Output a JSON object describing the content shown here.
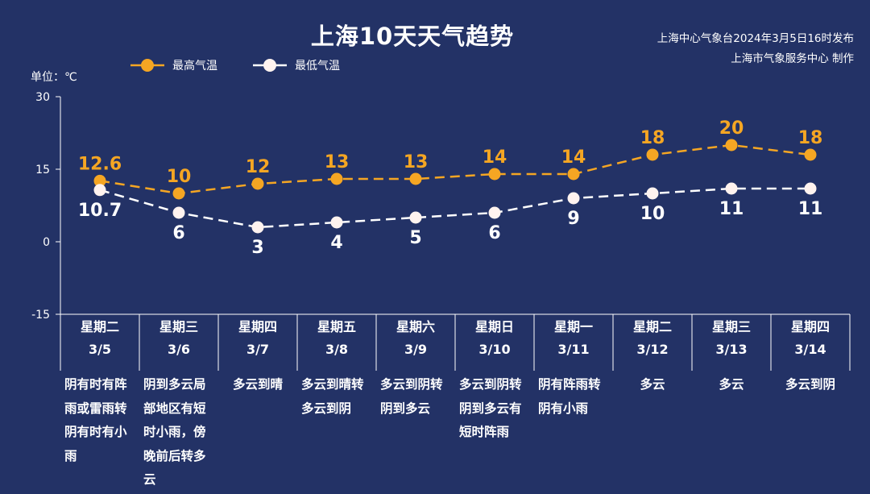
{
  "title": "上海10天天气趋势",
  "source": {
    "line1": "上海中心气象台2024年3月5日16时发布",
    "line2": "上海市气象服务中心 制作"
  },
  "unit_label": "单位：℃",
  "legend": {
    "high": "最高气温",
    "low": "最低气温"
  },
  "colors": {
    "background": "#233266",
    "high": "#f5a623",
    "low": "#ffffff",
    "axis": "#ffffff"
  },
  "chart_data": {
    "type": "line",
    "title": "上海10天天气趋势",
    "ylabel": "单位：℃",
    "ylim": [
      -15,
      30
    ],
    "yticks": [
      30,
      15,
      0,
      -15
    ],
    "ytick_labels": [
      "30",
      "15",
      "0",
      "-15"
    ],
    "grid": false,
    "legend_position": "top-left",
    "x": [
      "3/5",
      "3/6",
      "3/7",
      "3/8",
      "3/9",
      "3/10",
      "3/11",
      "3/12",
      "3/13",
      "3/14"
    ],
    "series": [
      {
        "name": "最高气温",
        "values": [
          12.6,
          10,
          12,
          13,
          13,
          14,
          14,
          18,
          20,
          18
        ],
        "labels": [
          "12.6",
          "10",
          "12",
          "13",
          "13",
          "14",
          "14",
          "18",
          "20",
          "18"
        ],
        "color": "#f5a623",
        "line_style": "dashed"
      },
      {
        "name": "最低气温",
        "values": [
          10.7,
          6,
          3,
          4,
          5,
          6,
          9,
          10,
          11,
          11
        ],
        "labels": [
          "10.7",
          "6",
          "3",
          "4",
          "5",
          "6",
          "9",
          "10",
          "11",
          "11"
        ],
        "color": "#ffffff",
        "line_style": "dashed"
      }
    ]
  },
  "days": [
    {
      "weekday": "星期二",
      "date": "3/5",
      "weather": "阴有时有阵雨或雷雨转阴有时有小雨"
    },
    {
      "weekday": "星期三",
      "date": "3/6",
      "weather": "阴到多云局部地区有短时小雨，傍晚前后转多云"
    },
    {
      "weekday": "星期四",
      "date": "3/7",
      "weather": "多云到晴"
    },
    {
      "weekday": "星期五",
      "date": "3/8",
      "weather": "多云到晴转多云到阴"
    },
    {
      "weekday": "星期六",
      "date": "3/9",
      "weather": "多云到阴转阴到多云"
    },
    {
      "weekday": "星期日",
      "date": "3/10",
      "weather": "多云到阴转阴到多云有短时阵雨"
    },
    {
      "weekday": "星期一",
      "date": "3/11",
      "weather": "阴有阵雨转阴有小雨"
    },
    {
      "weekday": "星期二",
      "date": "3/12",
      "weather": "多云"
    },
    {
      "weekday": "星期三",
      "date": "3/13",
      "weather": "多云"
    },
    {
      "weekday": "星期四",
      "date": "3/14",
      "weather": "多云到阴"
    }
  ]
}
